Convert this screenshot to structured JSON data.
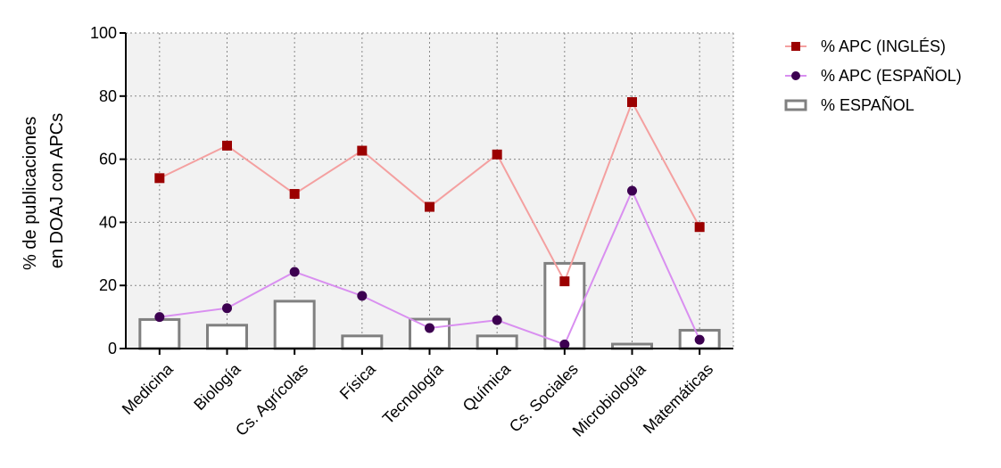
{
  "chart_data": {
    "type": "bar",
    "categories": [
      "Medicina",
      "Biología",
      "Cs. Agrícolas",
      "Física",
      "Tecnología",
      "Química",
      "Cs. Sociales",
      "Microbiología",
      "Matemáticas"
    ],
    "series": [
      {
        "name": "% APC (INGLÉS)",
        "kind": "line",
        "marker": "square",
        "color": "#9b0000",
        "line_color": "#f4a0a0",
        "values": [
          54,
          64.3,
          49,
          62.7,
          44.9,
          61.5,
          21.3,
          78.1,
          38.5
        ]
      },
      {
        "name": "% APC (ESPAÑOL)",
        "kind": "line",
        "marker": "circle",
        "color": "#3c0050",
        "line_color": "#d98ff0",
        "values": [
          10,
          12.8,
          24.3,
          16.7,
          6.5,
          9,
          1.3,
          50,
          2.8
        ]
      },
      {
        "name": "% ESPAÑOL",
        "kind": "bar",
        "color": "#808080",
        "values": [
          9.2,
          7.4,
          15,
          4,
          9.3,
          4,
          27,
          1.4,
          5.8
        ]
      }
    ],
    "ylabel": [
      "% de publicaciones",
      "en DOAJ con  APCs"
    ],
    "ylim": [
      0,
      100
    ],
    "yticks": [
      0,
      20,
      40,
      60,
      80,
      100
    ],
    "grid": true,
    "legend_position": "top-right",
    "plot_background": "#f2f2f2"
  }
}
